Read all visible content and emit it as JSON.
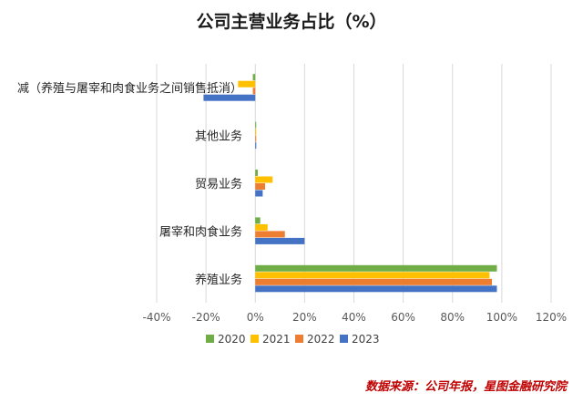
{
  "chart_data": {
    "type": "bar",
    "orientation": "horizontal",
    "title": "公司主营业务占比（%）",
    "categories": [
      "减（养殖与屠宰和肉食业务之间销售抵消）",
      "其他业务",
      "贸易业务",
      "屠宰和肉食业务",
      "养殖业务"
    ],
    "series": [
      {
        "name": "2020",
        "color": "#70ad47",
        "values": [
          -1,
          0.1,
          1,
          2,
          98
        ]
      },
      {
        "name": "2021",
        "color": "#ffc000",
        "values": [
          -7,
          0.1,
          7,
          5,
          95
        ]
      },
      {
        "name": "2022",
        "color": "#ed7d31",
        "values": [
          -1,
          0.1,
          4,
          12,
          96
        ]
      },
      {
        "name": "2023",
        "color": "#4472c4",
        "values": [
          -21,
          0.4,
          3,
          20,
          98
        ]
      }
    ],
    "xlim": [
      -40,
      120
    ],
    "xticks": [
      "-40%",
      "-20%",
      "0%",
      "20%",
      "40%",
      "60%",
      "80%",
      "100%",
      "120%"
    ],
    "grid": "vertical",
    "legend_position": "bottom"
  },
  "source_note": "数据来源：公司年报，星图金融研究院"
}
